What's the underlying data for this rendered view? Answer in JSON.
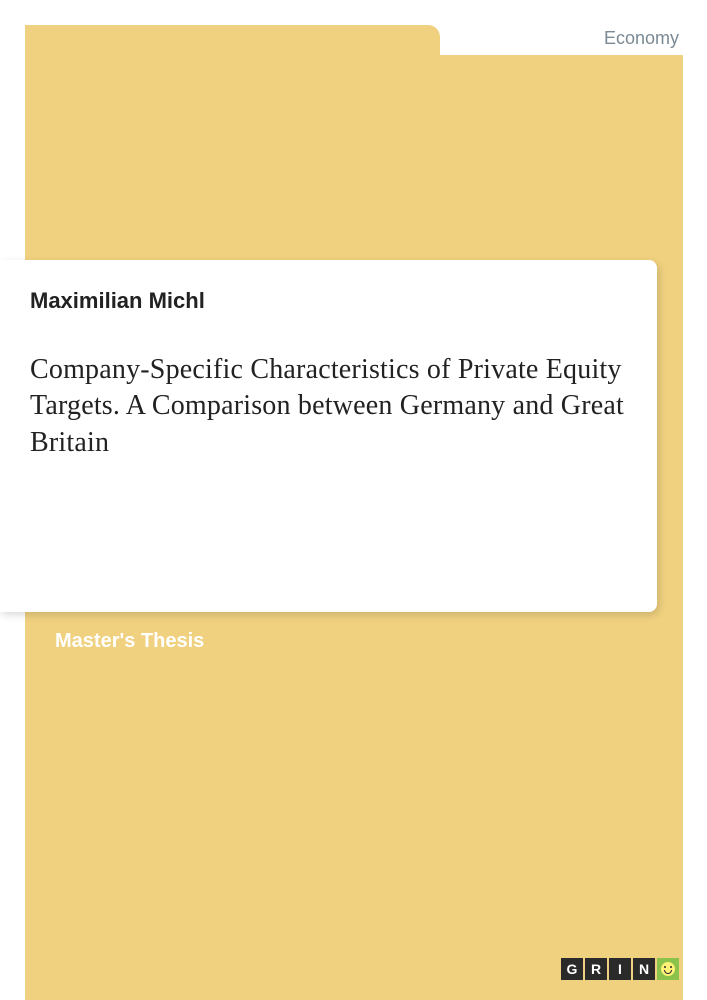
{
  "category": "Economy",
  "author": "Maximilian Michl",
  "title": "Company-Specific Characteristics of Private Equity Targets. A Comparison between Germany and Great Britain",
  "doctype": "Master's Thesis",
  "logo": {
    "letters": [
      "G",
      "R",
      "I",
      "N"
    ]
  },
  "colors": {
    "yellow": "#efd17f",
    "white": "#ffffff",
    "category_text": "#7a8a94",
    "body_text": "#222222",
    "logo_dark": "#2a2a2a",
    "logo_green": "#8bc34a"
  }
}
